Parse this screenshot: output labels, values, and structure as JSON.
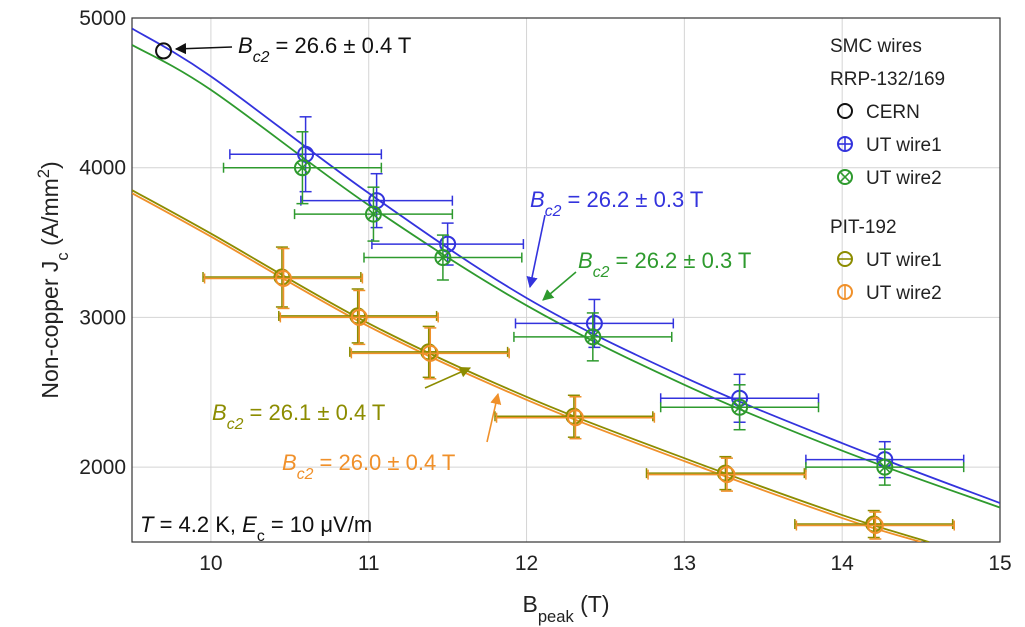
{
  "chart_data": {
    "type": "scatter",
    "xlim": [
      9.5,
      15
    ],
    "ylim": [
      1500,
      5000
    ],
    "xticks": [
      10,
      11,
      12,
      13,
      14,
      15
    ],
    "yticks": [
      2000,
      3000,
      4000,
      5000
    ],
    "grid": true,
    "x_label": [
      {
        "text": "B"
      },
      {
        "text": "peak",
        "sub": true
      },
      {
        "text": " (T)"
      }
    ],
    "y_label": [
      {
        "text": "Non-copper J"
      },
      {
        "text": "c",
        "sub": true
      },
      {
        "text": " (A/mm"
      },
      {
        "text": "2",
        "sup": true
      },
      {
        "text": ")"
      }
    ],
    "legend_groups": [
      {
        "title": [
          "SMC wires",
          "RRP-132/169"
        ],
        "series": [
          0,
          1,
          2
        ]
      },
      {
        "title": [
          "PIT-192"
        ],
        "series": [
          3,
          4
        ]
      }
    ],
    "legend_position": "upper right",
    "series": [
      {
        "name": "CERN",
        "color": "#111111",
        "marker": "circle",
        "x": [
          9.7
        ],
        "values": [
          4780
        ]
      },
      {
        "name": "UT wire1",
        "color": "#3333dd",
        "marker": "plus",
        "x": [
          10.6,
          11.05,
          11.5,
          12.43,
          13.35,
          14.27
        ],
        "values": [
          4090,
          3780,
          3490,
          2960,
          2460,
          2050
        ],
        "xerr": [
          0.48,
          0.48,
          0.48,
          0.5,
          0.5,
          0.5
        ],
        "yerr": [
          250,
          180,
          140,
          160,
          160,
          120
        ]
      },
      {
        "name": "UT wire2",
        "color": "#2e9a2e",
        "marker": "cross",
        "x": [
          10.58,
          11.03,
          11.47,
          12.42,
          13.35,
          14.27
        ],
        "values": [
          4000,
          3690,
          3400,
          2870,
          2400,
          2000
        ],
        "xerr": [
          0.5,
          0.5,
          0.5,
          0.5,
          0.5,
          0.5
        ],
        "yerr": [
          240,
          180,
          150,
          160,
          150,
          120
        ]
      },
      {
        "name": "UT wire1",
        "color": "#8c8c00",
        "marker": "hline",
        "x": [
          10.45,
          10.93,
          11.38,
          12.3,
          13.26,
          14.2
        ],
        "values": [
          3270,
          3010,
          2770,
          2340,
          1960,
          1620
        ],
        "xerr": [
          0.5,
          0.5,
          0.5,
          0.5,
          0.5,
          0.5
        ],
        "yerr": [
          200,
          180,
          170,
          140,
          110,
          90
        ]
      },
      {
        "name": "UT wire2",
        "color": "#f0902a",
        "marker": "vline",
        "x": [
          10.46,
          10.94,
          11.39,
          12.31,
          13.27,
          14.21
        ],
        "values": [
          3260,
          3000,
          2760,
          2330,
          1950,
          1610
        ],
        "xerr": [
          0.5,
          0.5,
          0.5,
          0.5,
          0.5,
          0.5
        ],
        "yerr": [
          200,
          180,
          170,
          140,
          110,
          90
        ]
      }
    ],
    "fits": [
      {
        "color": "#3333dd",
        "x": [
          9.5,
          10,
          11,
          12,
          13,
          14,
          15
        ],
        "values": [
          4930,
          4610,
          3830,
          3130,
          2600,
          2160,
          1760
        ]
      },
      {
        "color": "#2e9a2e",
        "x": [
          9.5,
          10,
          11,
          12,
          13,
          14,
          15
        ],
        "values": [
          4820,
          4520,
          3750,
          3080,
          2550,
          2110,
          1730
        ]
      },
      {
        "color": "#8c8c00",
        "x": [
          9.5,
          10,
          11,
          12,
          13,
          14,
          14.55
        ],
        "values": [
          3850,
          3560,
          2960,
          2470,
          2060,
          1680,
          1500
        ]
      },
      {
        "color": "#f0902a",
        "x": [
          9.5,
          10,
          11,
          12,
          13,
          14,
          14.5
        ],
        "values": [
          3830,
          3540,
          2940,
          2450,
          2040,
          1660,
          1500
        ]
      }
    ],
    "annotations": [
      {
        "color": "#111111",
        "segments": [
          {
            "text": "B",
            "italic": true
          },
          {
            "text": "c2",
            "italic": true,
            "sub": true
          },
          {
            "text": " = 26.6 ± 0.4 T"
          }
        ]
      },
      {
        "color": "#3333dd",
        "segments": [
          {
            "text": "B",
            "italic": true
          },
          {
            "text": "c2",
            "italic": true,
            "sub": true
          },
          {
            "text": " = 26.2 ± 0.3 T"
          }
        ]
      },
      {
        "color": "#2e9a2e",
        "segments": [
          {
            "text": "B",
            "italic": true
          },
          {
            "text": "c2",
            "italic": true,
            "sub": true
          },
          {
            "text": " = 26.2 ± 0.3 T"
          }
        ]
      },
      {
        "color": "#8c8c00",
        "segments": [
          {
            "text": "B",
            "italic": true
          },
          {
            "text": "c2",
            "italic": true,
            "sub": true
          },
          {
            "text": " = 26.1 ± 0.4 T"
          }
        ]
      },
      {
        "color": "#f0902a",
        "segments": [
          {
            "text": "B",
            "italic": true
          },
          {
            "text": "c2",
            "italic": true,
            "sub": true
          },
          {
            "text": " = 26.0 ± 0.4 T"
          }
        ]
      },
      {
        "color": "#111111",
        "segments": [
          {
            "text": "T",
            "italic": true
          },
          {
            "text": " = 4.2 K, "
          },
          {
            "text": "E",
            "italic": true
          },
          {
            "text": "c",
            "sub": true
          },
          {
            "text": " = 10 μV/m"
          }
        ]
      }
    ]
  }
}
